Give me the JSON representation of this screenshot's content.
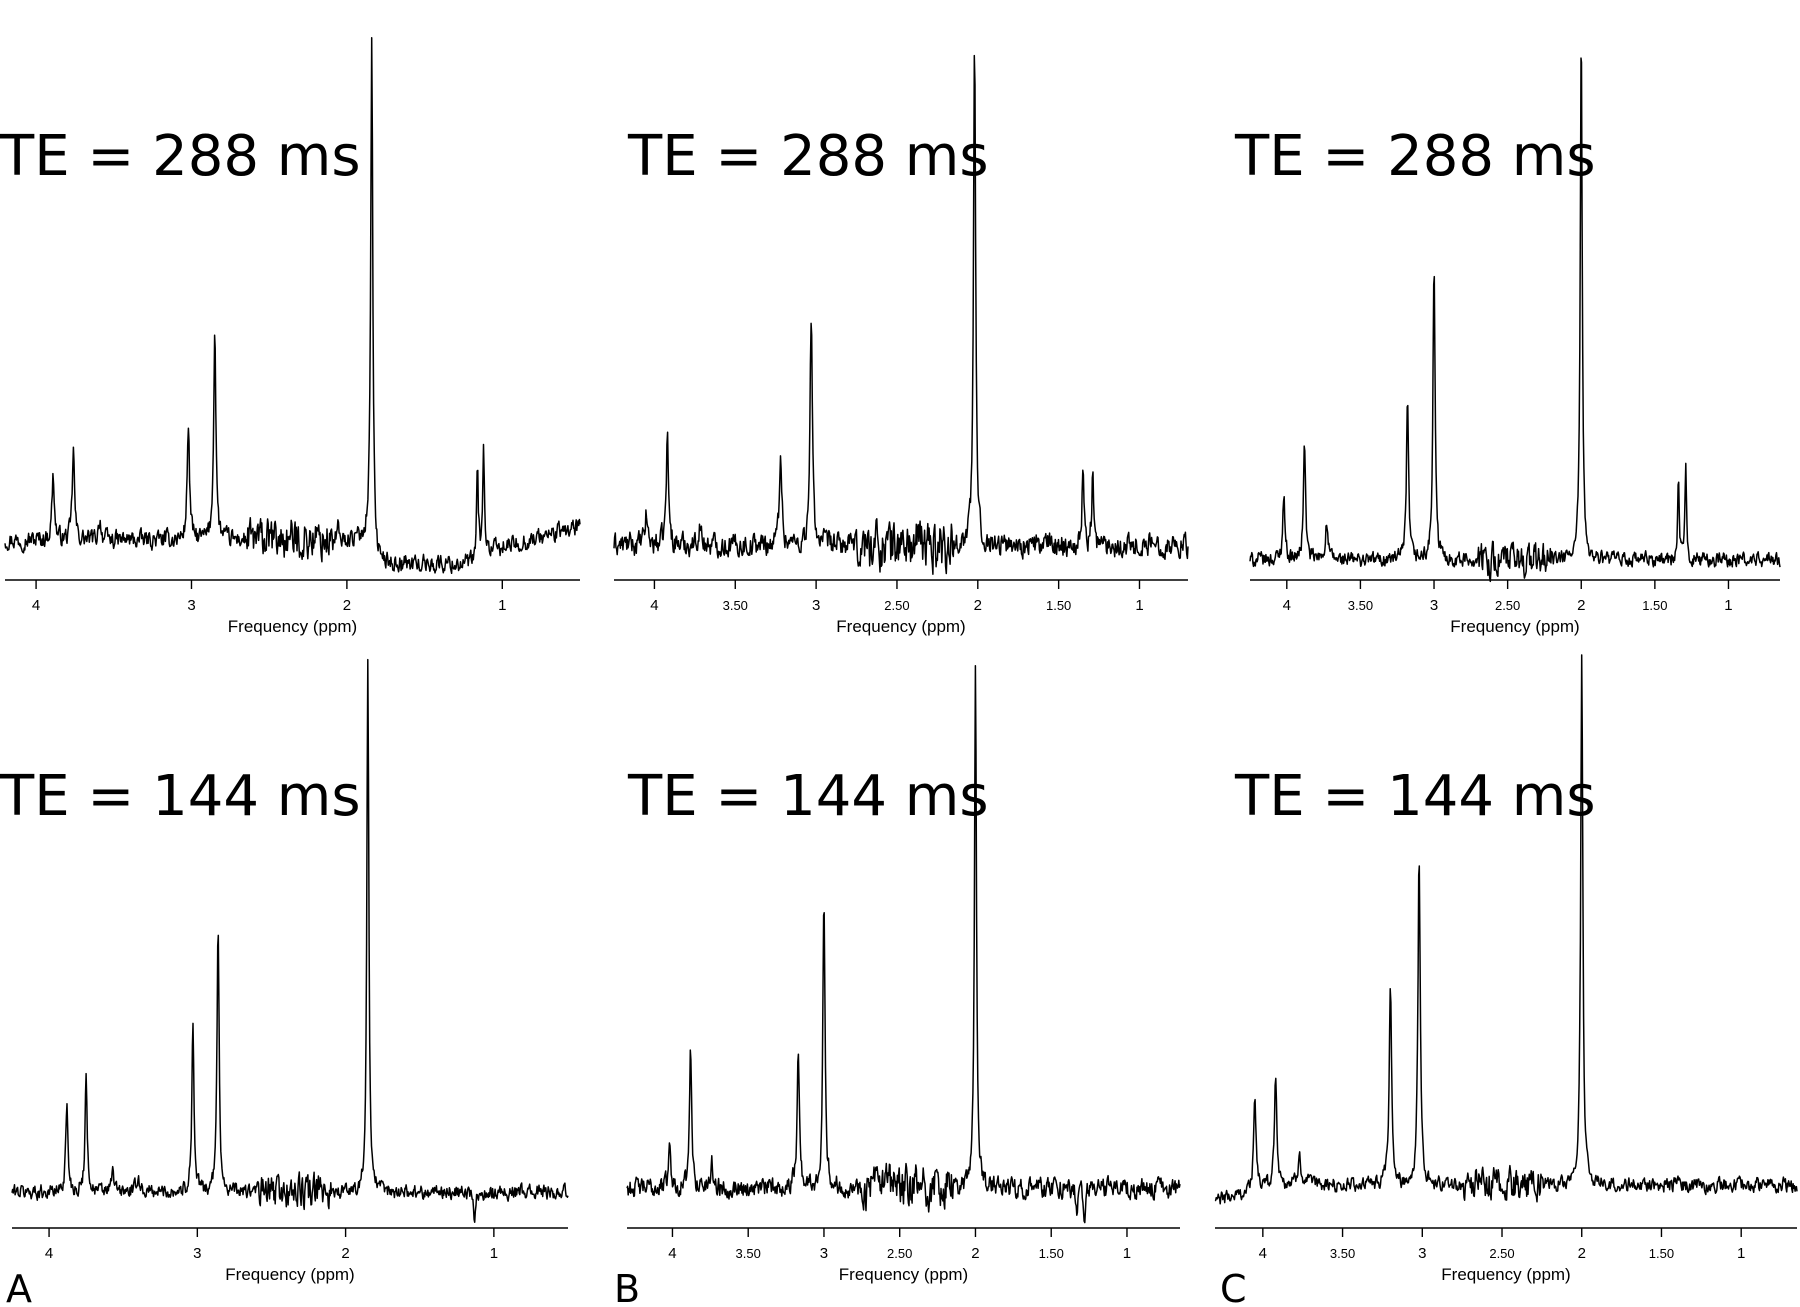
{
  "chart_data": [
    {
      "type": "line",
      "panel": "A",
      "title": "TE = 288 ms",
      "xlabel": "Frequency (ppm)",
      "xlim": [
        4.2,
        0.5
      ],
      "ticks": [
        {
          "v": 4,
          "label": "4"
        },
        {
          "v": 3,
          "label": "3"
        },
        {
          "v": 2,
          "label": "2"
        },
        {
          "v": 1,
          "label": "1"
        }
      ],
      "baseline": {
        "type": "sagging",
        "dip_from": 1.85,
        "dip_to": 1.15,
        "depth": 0.045
      },
      "noise": 0.022,
      "noise_regions": [
        [
          2.65,
          2.05
        ]
      ],
      "peaks": [
        {
          "ppm": 3.89,
          "height": 0.12,
          "width": 0.012
        },
        {
          "ppm": 3.76,
          "height": 0.17,
          "width": 0.011
        },
        {
          "ppm": 3.59,
          "height": 0.04,
          "width": 0.012
        },
        {
          "ppm": 3.02,
          "height": 0.22,
          "width": 0.011
        },
        {
          "ppm": 2.85,
          "height": 0.4,
          "width": 0.011
        },
        {
          "ppm": 1.84,
          "height": 1.0,
          "width": 0.01
        },
        {
          "ppm": 1.16,
          "height": 0.18,
          "width": 0.008
        },
        {
          "ppm": 1.12,
          "height": 0.19,
          "width": 0.008
        }
      ]
    },
    {
      "type": "line",
      "panel": "B",
      "title": "TE = 288 ms",
      "xlabel": "Frequency (ppm)",
      "xlim": [
        4.25,
        0.7
      ],
      "ticks": [
        {
          "v": 4,
          "label": "4"
        },
        {
          "v": 3.5,
          "label": "3.50"
        },
        {
          "v": 3,
          "label": "3"
        },
        {
          "v": 2.5,
          "label": "2.50"
        },
        {
          "v": 2,
          "label": "2"
        },
        {
          "v": 1.5,
          "label": "1.50"
        },
        {
          "v": 1,
          "label": "1"
        }
      ],
      "noise": 0.03,
      "noise_regions": [
        [
          2.75,
          2.15
        ]
      ],
      "peaks": [
        {
          "ppm": 4.05,
          "height": 0.06,
          "width": 0.012
        },
        {
          "ppm": 3.92,
          "height": 0.21,
          "width": 0.011
        },
        {
          "ppm": 3.72,
          "height": 0.04,
          "width": 0.012
        },
        {
          "ppm": 3.22,
          "height": 0.19,
          "width": 0.011
        },
        {
          "ppm": 3.03,
          "height": 0.45,
          "width": 0.011
        },
        {
          "ppm": 2.02,
          "height": 1.0,
          "width": 0.01
        },
        {
          "ppm": 1.35,
          "height": 0.16,
          "width": 0.008
        },
        {
          "ppm": 1.29,
          "height": 0.15,
          "width": 0.008
        }
      ]
    },
    {
      "type": "line",
      "panel": "C",
      "title": "TE = 288 ms",
      "xlabel": "Frequency (ppm)",
      "xlim": [
        4.25,
        0.65
      ],
      "ticks": [
        {
          "v": 4,
          "label": "4"
        },
        {
          "v": 3.5,
          "label": "3.50"
        },
        {
          "v": 3,
          "label": "3"
        },
        {
          "v": 2.5,
          "label": "2.50"
        },
        {
          "v": 2,
          "label": "2"
        },
        {
          "v": 1.5,
          "label": "1.50"
        },
        {
          "v": 1,
          "label": "1"
        }
      ],
      "noise": 0.018,
      "noise_regions": [
        [
          2.7,
          2.2
        ]
      ],
      "peaks": [
        {
          "ppm": 4.02,
          "height": 0.12,
          "width": 0.012
        },
        {
          "ppm": 3.88,
          "height": 0.22,
          "width": 0.011
        },
        {
          "ppm": 3.73,
          "height": 0.07,
          "width": 0.013
        },
        {
          "ppm": 3.18,
          "height": 0.29,
          "width": 0.011
        },
        {
          "ppm": 3.0,
          "height": 0.55,
          "width": 0.011
        },
        {
          "ppm": 2.0,
          "height": 1.0,
          "width": 0.01
        },
        {
          "ppm": 1.34,
          "height": 0.14,
          "width": 0.008
        },
        {
          "ppm": 1.29,
          "height": 0.17,
          "width": 0.008
        }
      ]
    },
    {
      "type": "line",
      "panel": "A",
      "title": "TE = 144 ms",
      "xlabel": "Frequency (ppm)",
      "xlim": [
        4.25,
        0.5
      ],
      "ticks": [
        {
          "v": 4,
          "label": "4"
        },
        {
          "v": 3,
          "label": "3"
        },
        {
          "v": 2,
          "label": "2"
        },
        {
          "v": 1,
          "label": "1"
        }
      ],
      "noise": 0.018,
      "noise_regions": [
        [
          2.6,
          2.1
        ]
      ],
      "peaks": [
        {
          "ppm": 3.88,
          "height": 0.16,
          "width": 0.012
        },
        {
          "ppm": 3.75,
          "height": 0.22,
          "width": 0.011
        },
        {
          "ppm": 3.57,
          "height": 0.04,
          "width": 0.012
        },
        {
          "ppm": 3.4,
          "height": 0.03,
          "width": 0.014
        },
        {
          "ppm": 3.03,
          "height": 0.32,
          "width": 0.011
        },
        {
          "ppm": 2.86,
          "height": 0.5,
          "width": 0.011
        },
        {
          "ppm": 1.85,
          "height": 1.0,
          "width": 0.01
        },
        {
          "ppm": 1.13,
          "height": -0.06,
          "width": 0.009
        }
      ]
    },
    {
      "type": "line",
      "panel": "B",
      "title": "TE = 144 ms",
      "xlabel": "Frequency (ppm)",
      "xlim": [
        4.3,
        0.65
      ],
      "ticks": [
        {
          "v": 4,
          "label": "4"
        },
        {
          "v": 3.5,
          "label": "3.50"
        },
        {
          "v": 3,
          "label": "3"
        },
        {
          "v": 2.5,
          "label": "2.50"
        },
        {
          "v": 2,
          "label": "2"
        },
        {
          "v": 1.5,
          "label": "1.50"
        },
        {
          "v": 1,
          "label": "1"
        }
      ],
      "noise": 0.024,
      "noise_regions": [
        [
          2.75,
          2.15
        ]
      ],
      "peaks": [
        {
          "ppm": 4.02,
          "height": 0.08,
          "width": 0.012
        },
        {
          "ppm": 3.88,
          "height": 0.26,
          "width": 0.011
        },
        {
          "ppm": 3.74,
          "height": 0.05,
          "width": 0.012
        },
        {
          "ppm": 3.17,
          "height": 0.28,
          "width": 0.011
        },
        {
          "ppm": 3.0,
          "height": 0.56,
          "width": 0.011
        },
        {
          "ppm": 2.0,
          "height": 1.0,
          "width": 0.01
        },
        {
          "ppm": 1.33,
          "height": -0.06,
          "width": 0.008
        },
        {
          "ppm": 1.28,
          "height": -0.05,
          "width": 0.008
        }
      ]
    },
    {
      "type": "line",
      "panel": "C",
      "title": "TE = 144 ms",
      "xlabel": "Frequency (ppm)",
      "xlim": [
        4.3,
        0.65
      ],
      "ticks": [
        {
          "v": 4,
          "label": "4"
        },
        {
          "v": 3.5,
          "label": "3.50"
        },
        {
          "v": 3,
          "label": "3"
        },
        {
          "v": 2.5,
          "label": "2.50"
        },
        {
          "v": 2,
          "label": "2"
        },
        {
          "v": 1.5,
          "label": "1.50"
        },
        {
          "v": 1,
          "label": "1"
        }
      ],
      "baseline": {
        "type": "rising_left",
        "amount": 0.03
      },
      "noise": 0.018,
      "noise_regions": [
        [
          2.75,
          2.25
        ]
      ],
      "peaks": [
        {
          "ppm": 4.05,
          "height": 0.16,
          "width": 0.013
        },
        {
          "ppm": 3.92,
          "height": 0.2,
          "width": 0.012
        },
        {
          "ppm": 3.77,
          "height": 0.06,
          "width": 0.014
        },
        {
          "ppm": 3.2,
          "height": 0.38,
          "width": 0.011
        },
        {
          "ppm": 3.02,
          "height": 0.63,
          "width": 0.011
        },
        {
          "ppm": 2.0,
          "height": 1.0,
          "width": 0.01
        }
      ]
    }
  ],
  "panel_letters": [
    "A",
    "B",
    "C"
  ]
}
